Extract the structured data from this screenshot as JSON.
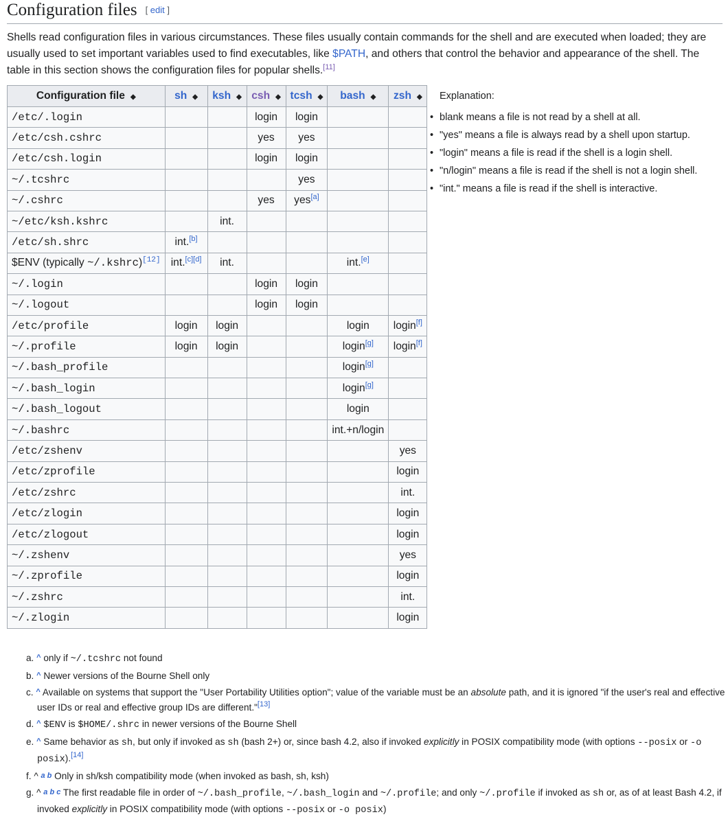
{
  "heading": {
    "title": "Configuration files",
    "edit": "edit"
  },
  "intro": {
    "before": "Shells read configuration files in various circumstances. These files usually contain commands for the shell and are executed when loaded; they are usually used to set important variables used to find executables, like ",
    "link": "$PATH",
    "after": ", and others that control the behavior and appearance of the shell. The table in this section shows the configuration files for popular shells.",
    "ref": "[11]"
  },
  "table": {
    "headers": [
      "Configuration file",
      "sh",
      "ksh",
      "csh",
      "tcsh",
      "bash",
      "zsh"
    ],
    "rows": [
      [
        [
          "/etc/.login"
        ],
        [
          ""
        ],
        [
          ""
        ],
        [
          "login"
        ],
        [
          "login"
        ],
        [
          ""
        ],
        [
          ""
        ]
      ],
      [
        [
          "/etc/csh.cshrc"
        ],
        [
          ""
        ],
        [
          ""
        ],
        [
          "yes"
        ],
        [
          "yes"
        ],
        [
          ""
        ],
        [
          ""
        ]
      ],
      [
        [
          "/etc/csh.login"
        ],
        [
          ""
        ],
        [
          ""
        ],
        [
          "login"
        ],
        [
          "login"
        ],
        [
          ""
        ],
        [
          ""
        ]
      ],
      [
        [
          "~/.tcshrc"
        ],
        [
          ""
        ],
        [
          ""
        ],
        [
          ""
        ],
        [
          "yes"
        ],
        [
          ""
        ],
        [
          ""
        ]
      ],
      [
        [
          "~/.cshrc"
        ],
        [
          ""
        ],
        [
          ""
        ],
        [
          "yes"
        ],
        [
          "yes",
          "[a]"
        ],
        [
          ""
        ],
        [
          ""
        ]
      ],
      [
        [
          "~/etc/ksh.kshrc"
        ],
        [
          ""
        ],
        [
          "int."
        ],
        [
          ""
        ],
        [
          ""
        ],
        [
          ""
        ],
        [
          ""
        ]
      ],
      [
        [
          "/etc/sh.shrc"
        ],
        [
          "int.",
          "[b]"
        ],
        [
          ""
        ],
        [
          ""
        ],
        [
          ""
        ],
        [
          ""
        ],
        [
          ""
        ]
      ],
      [
        [
          "$ENV (typically ~/.kshrc)",
          "[12]"
        ],
        [
          "int.",
          "[c][d]"
        ],
        [
          "int."
        ],
        [
          ""
        ],
        [
          ""
        ],
        [
          "int.",
          "[e]"
        ],
        [
          ""
        ]
      ],
      [
        [
          "~/.login"
        ],
        [
          ""
        ],
        [
          ""
        ],
        [
          "login"
        ],
        [
          "login"
        ],
        [
          ""
        ],
        [
          ""
        ]
      ],
      [
        [
          "~/.logout"
        ],
        [
          ""
        ],
        [
          ""
        ],
        [
          "login"
        ],
        [
          "login"
        ],
        [
          ""
        ],
        [
          ""
        ]
      ],
      [
        [
          "/etc/profile"
        ],
        [
          "login"
        ],
        [
          "login"
        ],
        [
          ""
        ],
        [
          ""
        ],
        [
          "login"
        ],
        [
          "login",
          "[f]"
        ]
      ],
      [
        [
          "~/.profile"
        ],
        [
          "login"
        ],
        [
          "login"
        ],
        [
          ""
        ],
        [
          ""
        ],
        [
          "login",
          "[g]"
        ],
        [
          "login",
          "[f]"
        ]
      ],
      [
        [
          "~/.bash_profile"
        ],
        [
          ""
        ],
        [
          ""
        ],
        [
          ""
        ],
        [
          ""
        ],
        [
          "login",
          "[g]"
        ],
        [
          ""
        ]
      ],
      [
        [
          "~/.bash_login"
        ],
        [
          ""
        ],
        [
          ""
        ],
        [
          ""
        ],
        [
          ""
        ],
        [
          "login",
          "[g]"
        ],
        [
          ""
        ]
      ],
      [
        [
          "~/.bash_logout"
        ],
        [
          ""
        ],
        [
          ""
        ],
        [
          ""
        ],
        [
          ""
        ],
        [
          "login"
        ],
        [
          ""
        ]
      ],
      [
        [
          "~/.bashrc"
        ],
        [
          ""
        ],
        [
          ""
        ],
        [
          ""
        ],
        [
          ""
        ],
        [
          "int.+n/login"
        ],
        [
          ""
        ]
      ],
      [
        [
          "/etc/zshenv"
        ],
        [
          ""
        ],
        [
          ""
        ],
        [
          ""
        ],
        [
          ""
        ],
        [
          ""
        ],
        [
          "yes"
        ]
      ],
      [
        [
          "/etc/zprofile"
        ],
        [
          ""
        ],
        [
          ""
        ],
        [
          ""
        ],
        [
          ""
        ],
        [
          ""
        ],
        [
          "login"
        ]
      ],
      [
        [
          "/etc/zshrc"
        ],
        [
          ""
        ],
        [
          ""
        ],
        [
          ""
        ],
        [
          ""
        ],
        [
          ""
        ],
        [
          "int."
        ]
      ],
      [
        [
          "/etc/zlogin"
        ],
        [
          ""
        ],
        [
          ""
        ],
        [
          ""
        ],
        [
          ""
        ],
        [
          ""
        ],
        [
          "login"
        ]
      ],
      [
        [
          "/etc/zlogout"
        ],
        [
          ""
        ],
        [
          ""
        ],
        [
          ""
        ],
        [
          ""
        ],
        [
          ""
        ],
        [
          "login"
        ]
      ],
      [
        [
          "~/.zshenv"
        ],
        [
          ""
        ],
        [
          ""
        ],
        [
          ""
        ],
        [
          ""
        ],
        [
          ""
        ],
        [
          "yes"
        ]
      ],
      [
        [
          "~/.zprofile"
        ],
        [
          ""
        ],
        [
          ""
        ],
        [
          ""
        ],
        [
          ""
        ],
        [
          ""
        ],
        [
          "login"
        ]
      ],
      [
        [
          "~/.zshrc"
        ],
        [
          ""
        ],
        [
          ""
        ],
        [
          ""
        ],
        [
          ""
        ],
        [
          ""
        ],
        [
          "int."
        ]
      ],
      [
        [
          "~/.zlogin"
        ],
        [
          ""
        ],
        [
          ""
        ],
        [
          ""
        ],
        [
          ""
        ],
        [
          ""
        ],
        [
          "login"
        ]
      ]
    ]
  },
  "explanation": {
    "title": "Explanation:",
    "items": [
      "blank means a file is not read by a shell at all.",
      "\"yes\" means a file is always read by a shell upon startup.",
      "\"login\" means a file is read if the shell is a login shell.",
      "\"n/login\" means a file is read if the shell is not a login shell.",
      "\"int.\" means a file is read if the shell is interactive."
    ]
  },
  "notes": [
    {
      "label": "a.",
      "back": "^",
      "html": "only if <code>~/.tcshrc</code> not found"
    },
    {
      "label": "b.",
      "back": "^",
      "html": "Newer versions of the Bourne Shell only"
    },
    {
      "label": "c.",
      "back": "^",
      "html": "Available on systems that support the \"User Portability Utilities option\"; value of the variable must be an <i>absolute</i> path, and it is ignored \"if the user's real and effective user IDs or real and effective group IDs are different.\"<sup><a>[13]</a></sup>"
    },
    {
      "label": "d.",
      "back": "^",
      "html": "<code>$ENV</code> is <code>$HOME/.shrc</code> in newer versions of the Bourne Shell"
    },
    {
      "label": "e.",
      "back": "^",
      "html": "Same behavior as <code>sh</code>, but only if invoked as <code>sh</code> (bash 2+) or, since bash 4.2, also if invoked <i>explicitly</i> in POSIX compatibility mode (with options <code>--posix</code> or <code>-o posix</code>).<sup><a>[14]</a></sup>"
    },
    {
      "label": "f.",
      "back": "^ a b",
      "html": "Only in sh/ksh compatibility mode (when invoked as bash, sh, ksh)"
    },
    {
      "label": "g.",
      "back": "^ a b c",
      "html": "The first readable file in order of <code>~/.bash_profile</code>, <code>~/.bash_login</code> and <code>~/.profile</code>; and only <code>~/.profile</code> if invoked as <code>sh</code> or, as of at least Bash 4.2, if invoked <i>explicitly</i> in POSIX compatibility mode (with options <code>--posix</code> or <code>-o posix</code>)"
    }
  ]
}
